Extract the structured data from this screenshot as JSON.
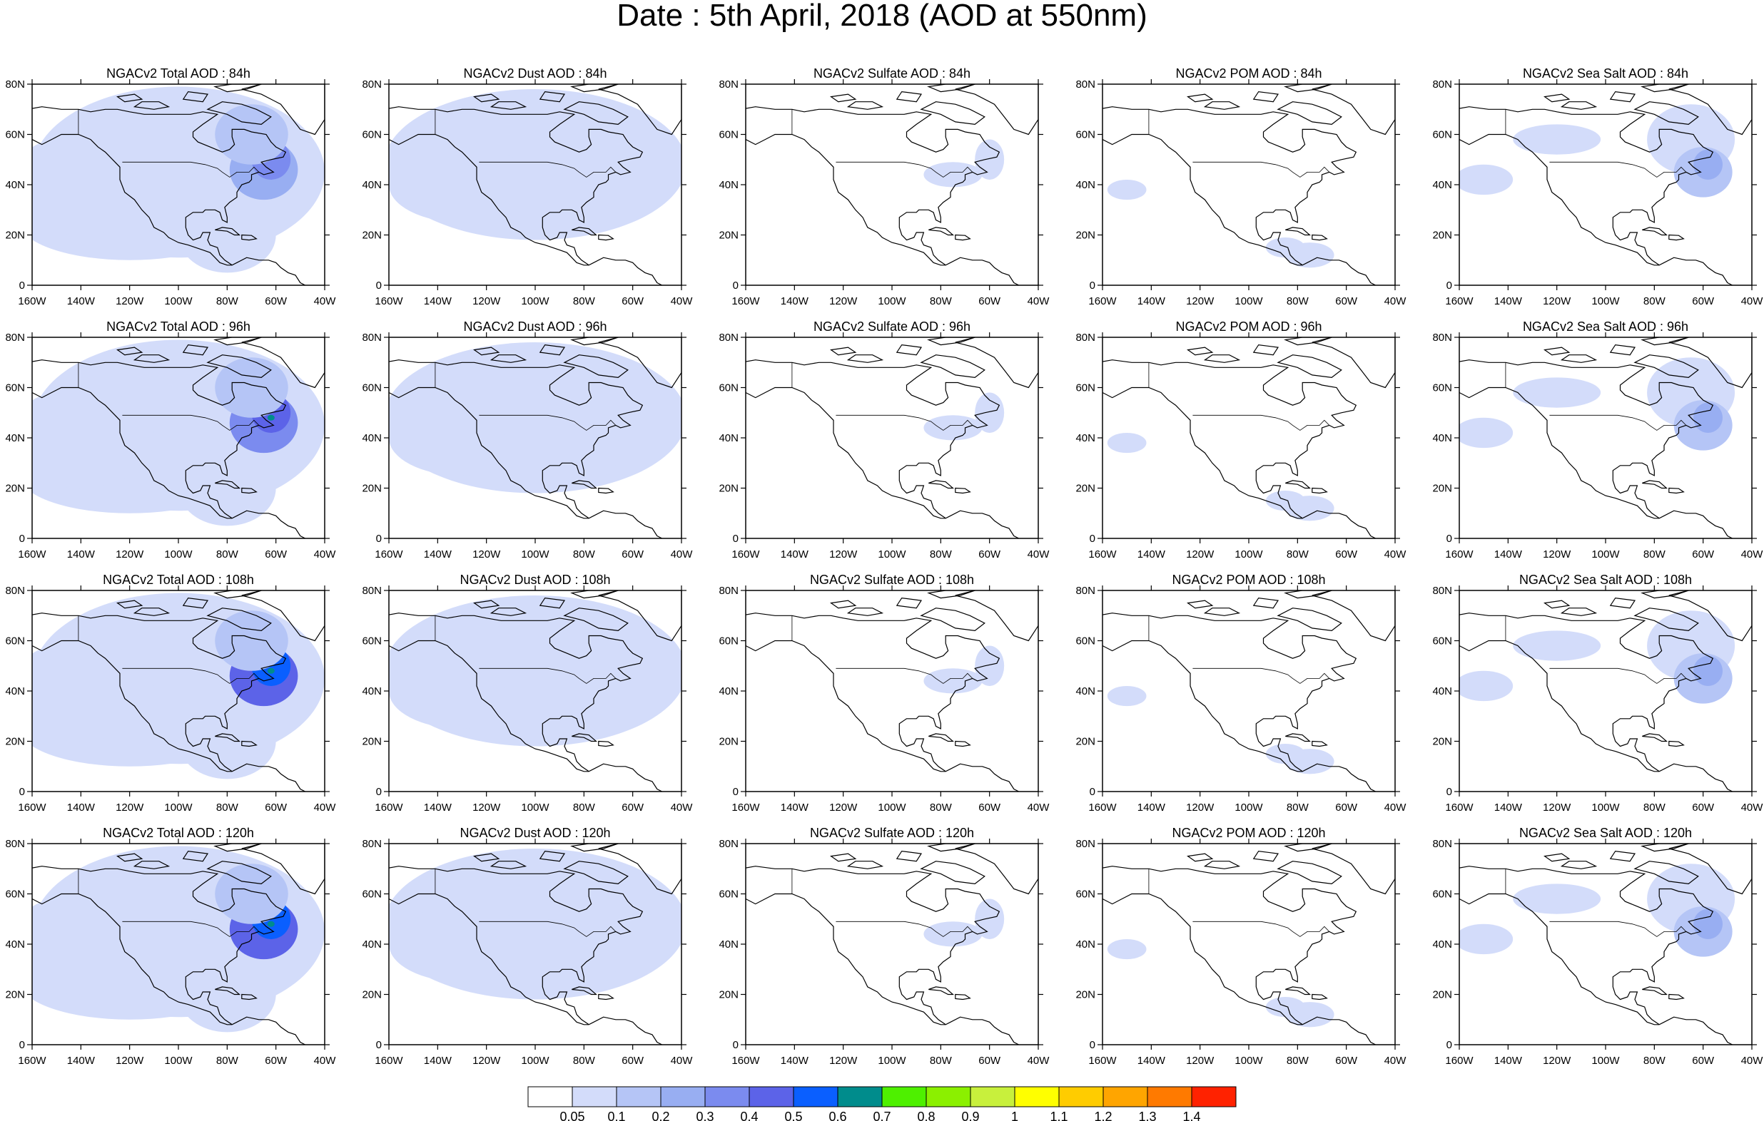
{
  "figure": {
    "title": "Date : 5th April, 2018 (AOD at 550nm)"
  },
  "panels": [
    [
      "NGACv2 Total AOD : 84h",
      "NGACv2 Dust AOD : 84h",
      "NGACv2 Sulfate AOD : 84h",
      "NGACv2 POM AOD : 84h",
      "NGACv2 Sea Salt AOD : 84h"
    ],
    [
      "NGACv2 Total AOD : 96h",
      "NGACv2 Dust AOD : 96h",
      "NGACv2 Sulfate AOD : 96h",
      "NGACv2 POM AOD : 96h",
      "NGACv2 Sea Salt AOD : 96h"
    ],
    [
      "NGACv2 Total AOD : 108h",
      "NGACv2 Dust AOD : 108h",
      "NGACv2 Sulfate AOD : 108h",
      "NGACv2 POM AOD : 108h",
      "NGACv2 Sea Salt AOD : 108h"
    ],
    [
      "NGACv2 Total AOD : 120h",
      "NGACv2 Dust AOD : 120h",
      "NGACv2 Sulfate AOD : 120h",
      "NGACv2 POM AOD : 120h",
      "NGACv2 Sea Salt  AOD : 120h"
    ]
  ],
  "axes": {
    "lon_ticks": [
      "160W",
      "140W",
      "120W",
      "100W",
      "80W",
      "60W",
      "40W"
    ],
    "lat_ticks": [
      "80N",
      "60N",
      "40N",
      "20N",
      "0"
    ],
    "lon_range": [
      -160,
      -40
    ],
    "lat_range": [
      0,
      80
    ]
  },
  "colorbar": {
    "labels": [
      "0.05",
      "0.1",
      "0.2",
      "0.3",
      "0.4",
      "0.5",
      "0.6",
      "0.7",
      "0.8",
      "0.9",
      "1",
      "1.1",
      "1.2",
      "1.3",
      "1.4"
    ],
    "colors": [
      "#ffffff",
      "#d3dcfa",
      "#b5c5f6",
      "#98aef2",
      "#7b8bef",
      "#5c63e8",
      "#0a5fff",
      "#008c8c",
      "#4ef000",
      "#8bf000",
      "#c8f03c",
      "#ffff00",
      "#ffcc00",
      "#ffa500",
      "#ff7a00",
      "#ff2200"
    ]
  },
  "chart_data": {
    "type": "heatmap",
    "variable": "AOD at 550nm",
    "rows_forecast_hours": [
      "84h",
      "96h",
      "108h",
      "120h"
    ],
    "columns_species": [
      "Total",
      "Dust",
      "Sulfate",
      "POM",
      "Sea Salt"
    ],
    "domain": {
      "lon": [
        -160,
        -40
      ],
      "lat": [
        0,
        80
      ]
    },
    "typical_max_level": [
      [
        0.4,
        0.1,
        0.1,
        0.1,
        0.2
      ],
      [
        0.7,
        0.1,
        0.1,
        0.1,
        0.3
      ],
      [
        0.7,
        0.1,
        0.1,
        0.1,
        0.3
      ],
      [
        0.5,
        0.1,
        0.1,
        0.1,
        0.3
      ]
    ]
  }
}
